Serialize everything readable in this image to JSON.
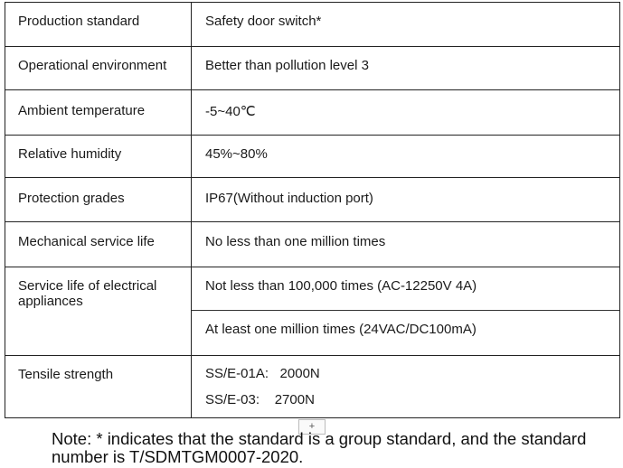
{
  "table": {
    "rows": [
      {
        "label": "Production standard",
        "values": [
          "Safety door switch*"
        ]
      },
      {
        "label": "Operational environment",
        "values": [
          "Better than pollution level 3"
        ]
      },
      {
        "label": "Ambient temperature",
        "values": [
          "-5~40℃"
        ]
      },
      {
        "label": "Relative humidity",
        "values": [
          "45%~80%"
        ]
      },
      {
        "label": "Protection grades",
        "values": [
          "IP67(Without induction port)"
        ]
      },
      {
        "label": "Mechanical service life",
        "values": [
          "No less than one million times"
        ]
      },
      {
        "label": "Service life of electrical appliances",
        "values": [
          "Not less than 100,000 times (AC-12250V 4A)",
          "At least one million times (24VAC/DC100mA)"
        ]
      },
      {
        "label": "Tensile strength",
        "values": [
          "SS/E-01A:   2000N",
          "SS/E-03:    2700N"
        ]
      }
    ]
  },
  "note": "Note: * indicates that the standard is a group standard, and the standard number is T/SDMTGM0007-2020."
}
